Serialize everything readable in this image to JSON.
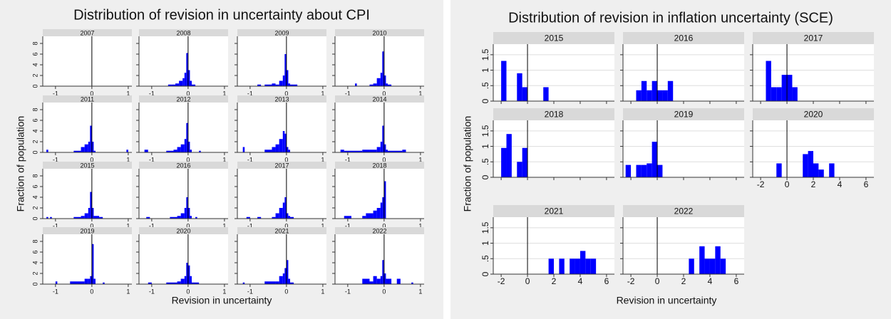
{
  "chart_data": [
    {
      "type": "histogram",
      "title": "Distribution of revision in uncertainty about CPI",
      "x_label": "Revision in uncertainty",
      "y_label": "Fraction of population",
      "color": "#0000ff",
      "grid": false,
      "x_ticks_all_rows": true,
      "refline_x": 0,
      "xlim": [
        -1.35,
        1.1
      ],
      "xticks": [
        -1,
        0,
        1
      ],
      "ylim": [
        0,
        8.8
      ],
      "yticks": [
        0,
        2,
        4,
        6,
        8
      ],
      "facets": [
        {
          "title": "2007",
          "bins": [
            -0.05,
            0
          ],
          "values": [
            0
          ]
        },
        {
          "title": "2008",
          "bins": [
            -0.55,
            -0.45,
            -0.35,
            -0.25,
            -0.15,
            -0.1,
            -0.05,
            0,
            0.05,
            0.1,
            0.2
          ],
          "values": [
            0.3,
            0.3,
            0.5,
            1,
            1.5,
            2.5,
            6.2,
            3,
            1,
            0.3
          ]
        },
        {
          "title": "2009",
          "bins": [
            -0.8,
            -0.7,
            -0.6,
            -0.4,
            -0.3,
            -0.2,
            -0.1,
            -0.05,
            0,
            0.05,
            0.1,
            0.2,
            0.3
          ],
          "values": [
            0.3,
            0,
            0.3,
            0.5,
            0.3,
            1,
            2,
            6,
            3,
            0.5,
            0.3,
            0.3
          ]
        },
        {
          "title": "2010",
          "bins": [
            -0.8,
            -0.75,
            -0.4,
            -0.3,
            -0.2,
            -0.1,
            -0.05,
            0,
            0.05,
            0.1,
            0.2
          ],
          "values": [
            0.5,
            0,
            0.3,
            0.5,
            1.5,
            2.5,
            6.5,
            2,
            0.5,
            0.3
          ]
        },
        {
          "title": "2011",
          "bins": [
            -1.25,
            -1.2,
            -0.5,
            -0.3,
            -0.2,
            -0.1,
            -0.05,
            0,
            0.05,
            0.1,
            0.95,
            1.0
          ],
          "values": [
            0.5,
            0,
            0.3,
            1,
            1.5,
            2,
            5,
            2,
            0.3,
            0,
            0.5
          ]
        },
        {
          "title": "2012",
          "bins": [
            -1.2,
            -1.1,
            -0.6,
            -0.4,
            -0.3,
            -0.2,
            -0.1,
            -0.05,
            0,
            0.05,
            0.1,
            0.3,
            0.35
          ],
          "values": [
            0.5,
            0,
            0.3,
            0.5,
            1,
            1.5,
            2.5,
            5.5,
            2,
            0.5,
            0,
            0.3
          ]
        },
        {
          "title": "2013",
          "bins": [
            -1.2,
            -1.15,
            -0.6,
            -0.4,
            -0.3,
            -0.2,
            -0.1,
            -0.05,
            0,
            0.05,
            0.1
          ],
          "values": [
            1,
            0,
            0.5,
            1,
            1.5,
            2.5,
            4,
            3.5,
            1,
            0.5
          ]
        },
        {
          "title": "2014",
          "bins": [
            -1.2,
            -1.1,
            -0.6,
            -0.4,
            -0.2,
            -0.1,
            -0.05,
            0,
            0.05,
            0.1,
            0.5,
            0.6
          ],
          "values": [
            0.5,
            0.3,
            0.5,
            0.5,
            1,
            2,
            5,
            1.5,
            0.5,
            0.3,
            0.5
          ]
        },
        {
          "title": "2015",
          "bins": [
            -1.25,
            -1.2,
            -1.15,
            -1.1,
            -0.5,
            -0.3,
            -0.2,
            -0.1,
            -0.05,
            0,
            0.05,
            0.1,
            0.2,
            0.3
          ],
          "values": [
            0.3,
            0,
            0.3,
            0,
            0.3,
            0.5,
            1,
            2,
            5,
            2,
            0.5,
            0.5,
            0.3
          ]
        },
        {
          "title": "2016",
          "bins": [
            -1.15,
            -1.05,
            -0.5,
            -0.3,
            -0.2,
            -0.1,
            -0.05,
            0,
            0.05,
            0.1,
            0.2,
            0.25
          ],
          "values": [
            0.3,
            0,
            0.3,
            0.5,
            1,
            2,
            4,
            2,
            0.5,
            0,
            0.3
          ]
        },
        {
          "title": "2017",
          "bins": [
            -1.1,
            -1.0,
            -0.8,
            -0.7,
            -0.4,
            -0.3,
            -0.2,
            -0.1,
            -0.05,
            0,
            0.05,
            0.1,
            0.2
          ],
          "values": [
            0.3,
            0,
            0.3,
            0,
            0.3,
            1,
            2,
            3,
            4,
            1,
            0.5,
            0.3
          ]
        },
        {
          "title": "2018",
          "bins": [
            -1.1,
            -0.9,
            -0.6,
            -0.5,
            -0.3,
            -0.2,
            -0.1,
            -0.05,
            0,
            0.05
          ],
          "values": [
            0.5,
            0,
            0.5,
            1,
            1.5,
            2,
            3,
            4,
            7
          ]
        },
        {
          "title": "2019",
          "bins": [
            -1.0,
            -0.95,
            -0.6,
            -0.4,
            -0.2,
            -0.1,
            -0.05,
            0,
            0.05,
            0.1,
            0.3,
            0.35
          ],
          "values": [
            0.5,
            0,
            0.5,
            0.5,
            1,
            1,
            1.5,
            7.5,
            1,
            0,
            0.3
          ]
        },
        {
          "title": "2020",
          "bins": [
            -1.1,
            -1.0,
            -0.6,
            -0.3,
            -0.2,
            -0.1,
            -0.05,
            0,
            0.05,
            0.1,
            0.3
          ],
          "values": [
            0.3,
            0,
            0.3,
            0.5,
            1,
            1.5,
            4,
            3.5,
            1.5,
            0.3
          ]
        },
        {
          "title": "2021",
          "bins": [
            -1.2,
            -1.15,
            -0.6,
            -0.3,
            -0.2,
            -0.1,
            -0.05,
            0,
            0.05,
            0.1,
            0.2
          ],
          "values": [
            0.3,
            0,
            0.5,
            0.5,
            1.5,
            2,
            3,
            4.5,
            1,
            0.3
          ]
        },
        {
          "title": "2022",
          "bins": [
            -0.6,
            -0.4,
            -0.3,
            -0.2,
            -0.1,
            -0.05,
            0,
            0.05,
            0.1,
            0.2,
            0.35,
            0.45,
            0.75,
            0.8
          ],
          "values": [
            1,
            0.5,
            1.5,
            1,
            1.5,
            4.5,
            2,
            1,
            1,
            0,
            1,
            0,
            0.3
          ]
        }
      ]
    },
    {
      "type": "histogram",
      "title": "Distribution of revision in inflation uncertainty (SCE)",
      "x_label": "Revision in uncertainty",
      "y_label": "Fraction of population",
      "color": "#0000ff",
      "grid": true,
      "x_ticks_all_rows": false,
      "refline_x": 0,
      "xlim": [
        -2.6,
        6.6
      ],
      "xticks": [
        -2,
        0,
        2,
        4,
        6
      ],
      "ylim": [
        0,
        1.75
      ],
      "yticks": [
        0,
        {
          "value": 0.5,
          "label": ".5"
        },
        1,
        1.5
      ],
      "facets": [
        {
          "title": "2015",
          "bins": [
            -2,
            -1.6,
            -1.2,
            -0.8,
            -0.4,
            0,
            0.4,
            0.8,
            1.2,
            1.6
          ],
          "values": [
            1.3,
            0,
            0,
            0.9,
            0.45,
            0,
            0,
            0,
            0.45
          ]
        },
        {
          "title": "2016",
          "bins": [
            -1.6,
            -1.2,
            -0.8,
            -0.4,
            0,
            0.4,
            0.8,
            1.2
          ],
          "values": [
            0.35,
            0.65,
            0.35,
            0.65,
            0.35,
            0.35,
            0.65
          ]
        },
        {
          "title": "2017",
          "bins": [
            -1.6,
            -1.2,
            -0.8,
            -0.4,
            0,
            0.4,
            0.8
          ],
          "values": [
            1.3,
            0.45,
            0.45,
            0.85,
            0.85,
            0.45
          ]
        },
        {
          "title": "2018",
          "bins": [
            -2,
            -1.6,
            -1.2,
            -0.8,
            -0.4,
            0
          ],
          "values": [
            0.95,
            1.4,
            0,
            0.5,
            0.95
          ]
        },
        {
          "title": "2019",
          "bins": [
            -2.4,
            -2,
            -1.6,
            -1.2,
            -0.8,
            -0.4,
            0,
            0.4
          ],
          "values": [
            0.4,
            0,
            0.4,
            0.4,
            0.45,
            1.15,
            0.4
          ]
        },
        {
          "title": "2020",
          "bins": [
            -0.8,
            -0.4,
            0,
            0.4,
            0.8,
            1.2,
            1.6,
            2,
            2.4,
            2.8,
            3.2,
            3.6
          ],
          "values": [
            0.45,
            0,
            0,
            0,
            0,
            0.75,
            0.85,
            0.45,
            0.25,
            0,
            0.45
          ]
        },
        {
          "title": "2021",
          "bins": [
            1.6,
            2.0,
            2.4,
            2.8,
            3.2,
            3.6,
            4.0,
            4.4,
            4.8,
            5.2
          ],
          "values": [
            0.5,
            0,
            0.5,
            0,
            0.5,
            0.5,
            0.75,
            0.5,
            0.5
          ]
        },
        {
          "title": "2022",
          "bins": [
            2.4,
            2.8,
            3.2,
            3.6,
            4.0,
            4.4,
            4.8,
            5.2
          ],
          "values": [
            0.5,
            0,
            0.9,
            0.5,
            0.5,
            0.9,
            0.5
          ]
        }
      ]
    }
  ]
}
